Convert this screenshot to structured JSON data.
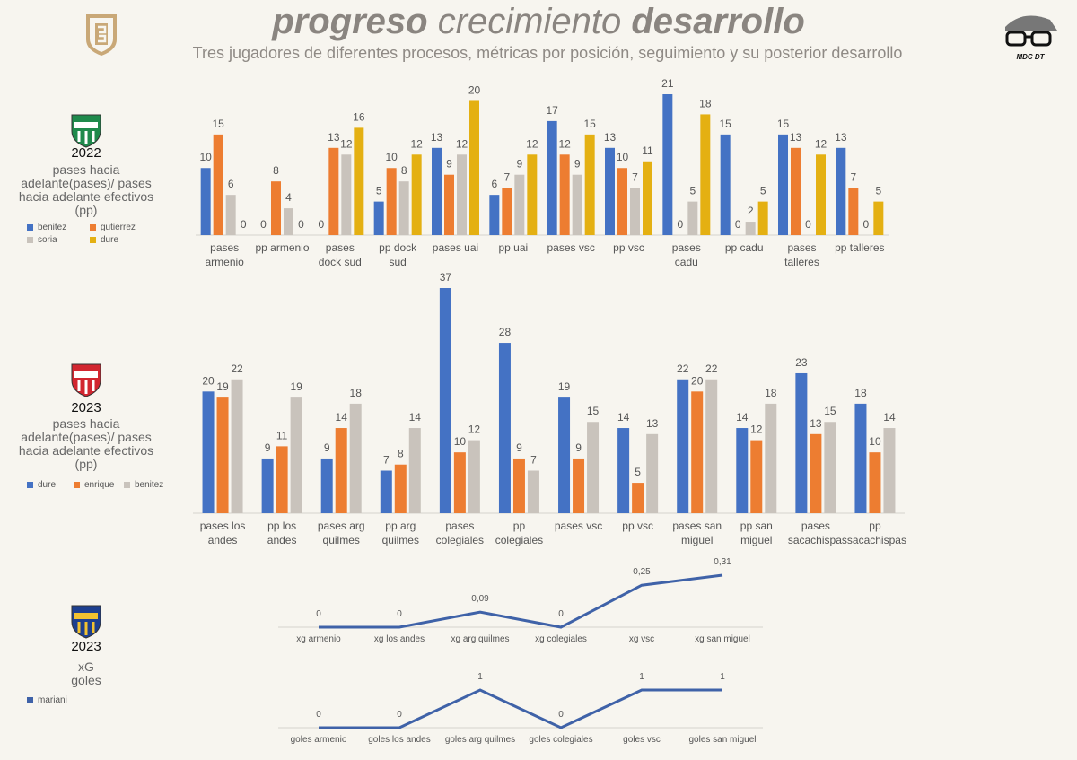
{
  "header": {
    "title": [
      "progreso",
      "crecimiento",
      "desarrollo"
    ],
    "subtitle": "Tres jugadores de diferentes procesos, métricas por posición, seguimiento y su posterior desarrollo",
    "brand": "MDC DT"
  },
  "chart_data": [
    {
      "type": "bar",
      "year": "2022",
      "title": "pases hacia adelante(pases)/ pases hacia adelante efectivos (pp)",
      "categories": [
        "pases armenio",
        "pp armenio",
        "pases dock sud",
        "pp dock sud",
        "pases uai",
        "pp uai",
        "pases vsc",
        "pp vsc",
        "pases cadu",
        "pp cadu",
        "pases talleres",
        "pp talleres"
      ],
      "series": [
        {
          "name": "benitez",
          "color": "#4472c4",
          "values": [
            10,
            0,
            0,
            5,
            13,
            6,
            17,
            13,
            21,
            15,
            15,
            13
          ]
        },
        {
          "name": "gutierrez",
          "color": "#ed7d31",
          "values": [
            15,
            8,
            13,
            10,
            9,
            7,
            12,
            10,
            0,
            0,
            13,
            7
          ]
        },
        {
          "name": "soria",
          "color": "#c9c3bc",
          "values": [
            6,
            4,
            12,
            8,
            12,
            9,
            9,
            7,
            5,
            2,
            0,
            0
          ]
        },
        {
          "name": "dure",
          "color": "#e4b012",
          "values": [
            0,
            0,
            16,
            12,
            20,
            12,
            15,
            11,
            18,
            5,
            12,
            5
          ]
        }
      ]
    },
    {
      "type": "bar",
      "year": "2023",
      "title": "pases hacia adelante(pases)/ pases hacia adelante efectivos (pp)",
      "categories": [
        "pases los andes",
        "pp los andes",
        "pases arg quilmes",
        "pp arg quilmes",
        "pases colegiales",
        "pp colegiales",
        "pases vsc",
        "pp vsc",
        "pases san miguel",
        "pp san miguel",
        "pases sacachispas",
        "pp sacachispas"
      ],
      "series": [
        {
          "name": "dure",
          "color": "#4472c4",
          "values": [
            20,
            9,
            9,
            7,
            37,
            28,
            19,
            14,
            22,
            14,
            23,
            18
          ]
        },
        {
          "name": "enrique",
          "color": "#ed7d31",
          "values": [
            19,
            11,
            14,
            8,
            10,
            9,
            9,
            5,
            20,
            12,
            13,
            10
          ]
        },
        {
          "name": "benitez",
          "color": "#c9c3bc",
          "values": [
            22,
            19,
            18,
            14,
            12,
            7,
            15,
            13,
            22,
            18,
            15,
            14
          ]
        }
      ]
    },
    {
      "type": "line",
      "year": "2023",
      "title": "xG",
      "categories": [
        "xg armenio",
        "xg los andes",
        "xg arg quilmes",
        "xg colegiales",
        "xg vsc",
        "xg san miguel"
      ],
      "series": [
        {
          "name": "mariani",
          "color": "#3f62a8",
          "values": [
            0,
            0,
            0.09,
            0,
            0.25,
            0.31
          ],
          "value_labels": [
            "0",
            "0",
            "0,09",
            "0",
            "0,25",
            "0,31"
          ]
        }
      ]
    },
    {
      "type": "line",
      "title": "goles",
      "categories": [
        "goles armenio",
        "goles los andes",
        "goles arg quilmes",
        "goles colegiales",
        "goles vsc",
        "goles san miguel"
      ],
      "color": "#3f62a8",
      "values": [
        0,
        0,
        1,
        0,
        1,
        1
      ]
    }
  ]
}
